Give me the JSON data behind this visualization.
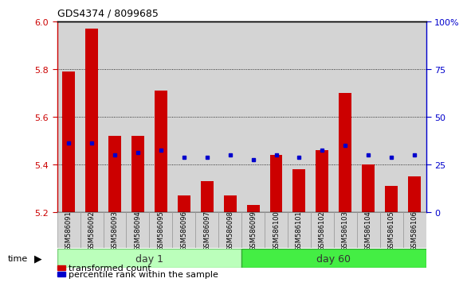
{
  "title": "GDS4374 / 8099685",
  "samples": [
    "GSM586091",
    "GSM586092",
    "GSM586093",
    "GSM586094",
    "GSM586095",
    "GSM586096",
    "GSM586097",
    "GSM586098",
    "GSM586099",
    "GSM586100",
    "GSM586101",
    "GSM586102",
    "GSM586103",
    "GSM586104",
    "GSM586105",
    "GSM586106"
  ],
  "red_values": [
    5.79,
    5.97,
    5.52,
    5.52,
    5.71,
    5.27,
    5.33,
    5.27,
    5.23,
    5.44,
    5.38,
    5.46,
    5.7,
    5.4,
    5.31,
    5.35
  ],
  "blue_values": [
    5.49,
    5.49,
    5.44,
    5.45,
    5.46,
    5.43,
    5.43,
    5.44,
    5.42,
    5.44,
    5.43,
    5.46,
    5.48,
    5.44,
    5.43,
    5.44
  ],
  "ymin": 5.2,
  "ymax": 6.0,
  "y_ticks": [
    5.2,
    5.4,
    5.6,
    5.8,
    6.0
  ],
  "y2_ticks": [
    0,
    25,
    50,
    75,
    100
  ],
  "y2_tick_labels": [
    "0",
    "25",
    "50",
    "75",
    "100%"
  ],
  "grid_lines": [
    5.4,
    5.6,
    5.8
  ],
  "bar_color": "#cc0000",
  "dot_color": "#0000cc",
  "day1_color": "#bbffbb",
  "day60_color": "#44ee44",
  "day1_samples": 8,
  "day60_samples": 8,
  "bar_width": 0.55,
  "legend_red": "transformed count",
  "legend_blue": "percentile rank within the sample",
  "col_bg_light": "#d4d4d4",
  "col_bg_dark": "#cccccc",
  "plot_bg": "#ffffff",
  "border_color": "#000000"
}
